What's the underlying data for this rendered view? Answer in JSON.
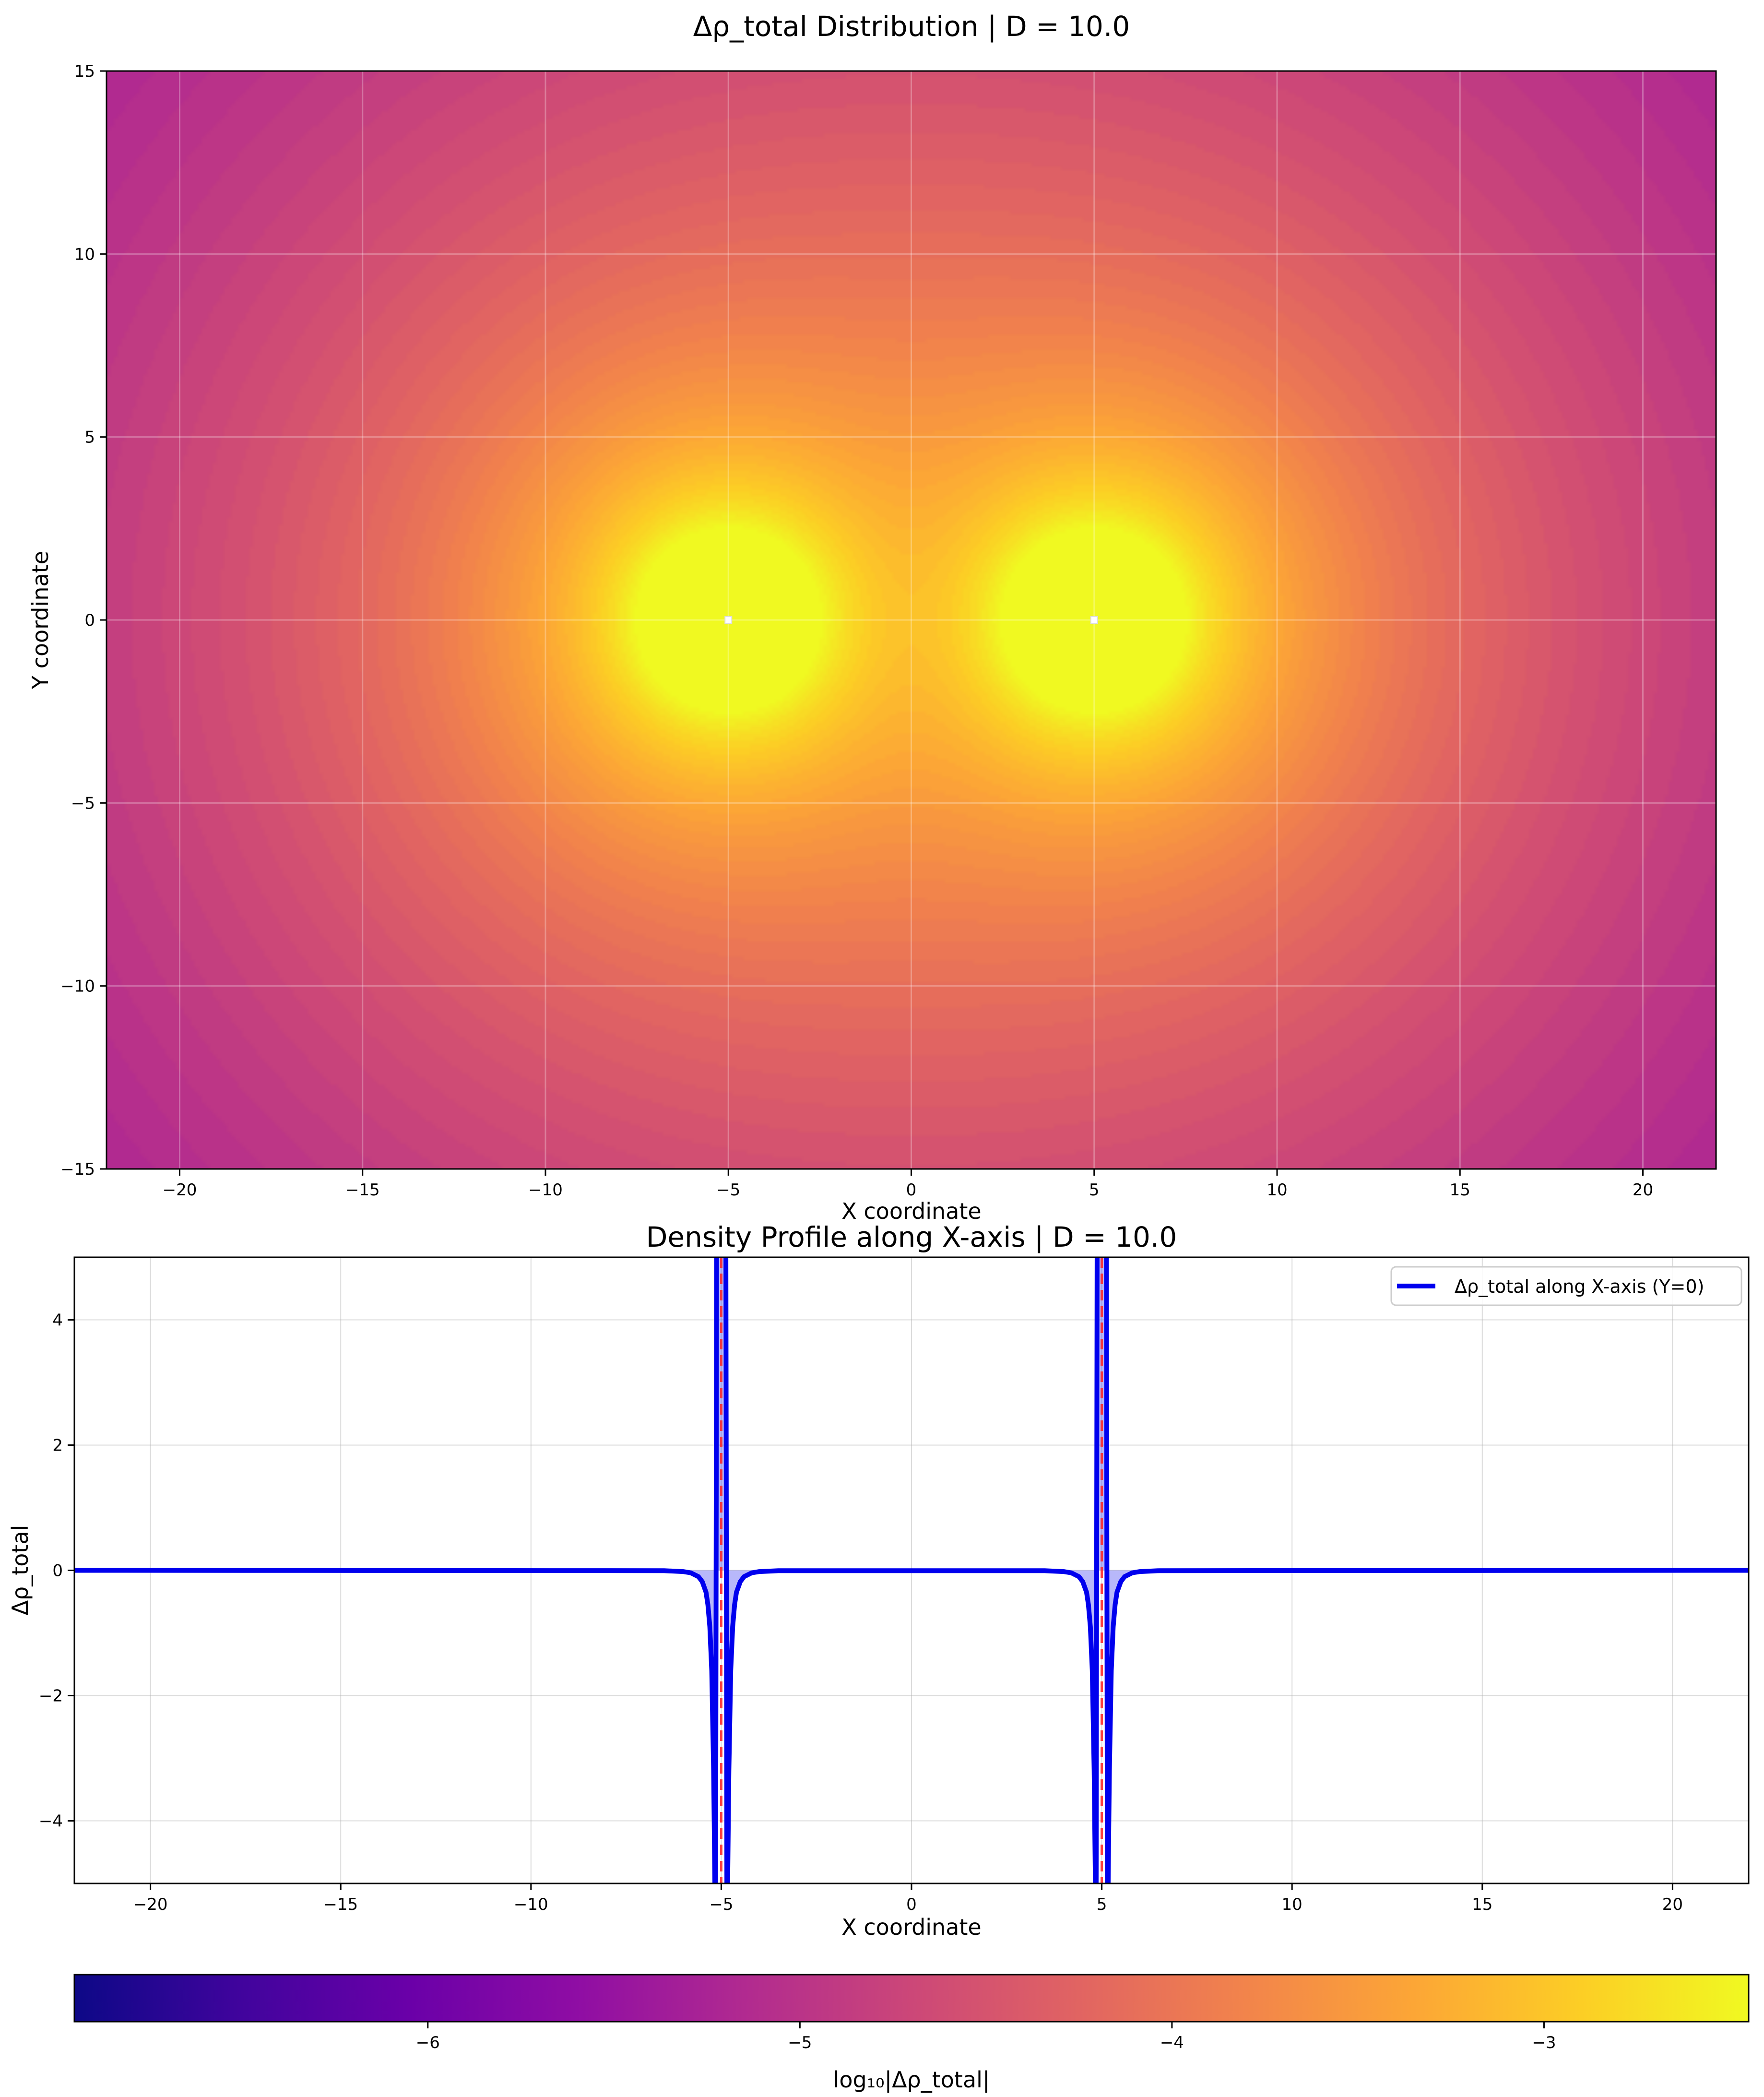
{
  "chart_data": [
    {
      "type": "heatmap",
      "title": "Δρ_total Distribution | D = 10.0",
      "xlabel": "X coordinate",
      "ylabel": "Y coordinate",
      "xlim": [
        -22,
        22
      ],
      "ylim": [
        -15,
        15
      ],
      "xticks": [
        -20,
        -15,
        -10,
        -5,
        0,
        5,
        10,
        15,
        20
      ],
      "yticks": [
        -15,
        -10,
        -5,
        0,
        5,
        10,
        15
      ],
      "grid": true,
      "sources": [
        {
          "x": -5,
          "y": 0
        },
        {
          "x": 5,
          "y": 0
        }
      ],
      "colormap": "plasma",
      "value_range": [
        -7,
        -2.5
      ]
    },
    {
      "type": "line",
      "title": "Density Profile along X-axis | D = 10.0",
      "xlabel": "X coordinate",
      "ylabel": "Δρ_total",
      "xlim": [
        -22,
        22
      ],
      "ylim": [
        -5,
        5
      ],
      "xticks": [
        -20,
        -15,
        -10,
        -5,
        0,
        5,
        10,
        15,
        20
      ],
      "yticks": [
        -4,
        -2,
        0,
        2,
        4
      ],
      "grid": true,
      "legend_position": "top-right",
      "series": [
        {
          "name": "Δρ_total along X-axis (Y=0)",
          "color": "#0000ee",
          "x": [
            -22,
            -6.5,
            -6,
            -5.8,
            -5.6,
            -5.5,
            -5.4,
            -5.35,
            -5.3,
            -5.25,
            -5.2,
            -5.15,
            -5.12,
            -5.1,
            -4.9,
            -4.88,
            -4.85,
            -4.8,
            -4.75,
            -4.7,
            -4.65,
            -4.6,
            -4.5,
            -4.4,
            -4.2,
            -4,
            -3.5,
            3.5,
            4,
            4.2,
            4.4,
            4.5,
            4.6,
            4.65,
            4.7,
            4.75,
            4.8,
            4.85,
            4.88,
            4.9,
            5.1,
            5.12,
            5.15,
            5.2,
            5.25,
            5.3,
            5.35,
            5.4,
            5.5,
            5.6,
            5.8,
            6,
            6.5,
            22
          ],
          "y": [
            0,
            -0.005,
            -0.02,
            -0.04,
            -0.1,
            -0.18,
            -0.35,
            -0.55,
            -0.9,
            -1.6,
            -3.2,
            -6,
            6,
            6,
            6,
            6,
            -6,
            -3.2,
            -1.6,
            -0.9,
            -0.55,
            -0.35,
            -0.18,
            -0.1,
            -0.04,
            -0.02,
            -0.005,
            -0.005,
            -0.02,
            -0.04,
            -0.1,
            -0.18,
            -0.35,
            -0.55,
            -0.9,
            -1.6,
            -3.2,
            -6,
            6,
            6,
            6,
            6,
            -6,
            -3.2,
            -1.6,
            -0.9,
            -0.55,
            -0.35,
            -0.18,
            -0.1,
            -0.04,
            -0.02,
            -0.005,
            0
          ]
        }
      ],
      "reference_lines_x": [
        -5,
        5
      ],
      "reference_line_color": "#ff2222"
    },
    {
      "type": "colorbar",
      "label": "log₁₀|Δρ_total|",
      "range": [
        -6.95,
        -2.45
      ],
      "ticks": [
        -6,
        -5,
        -4,
        -3
      ],
      "colormap": "plasma"
    }
  ]
}
